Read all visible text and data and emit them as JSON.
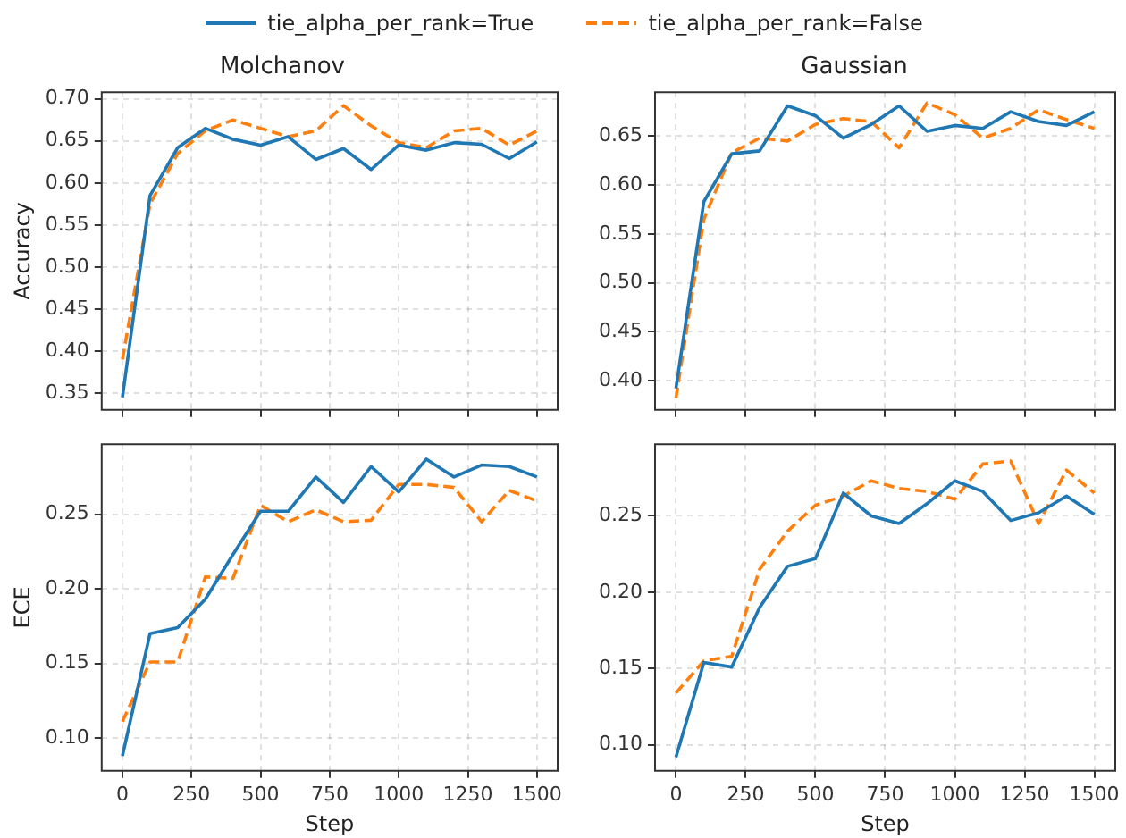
{
  "chart_data": [
    {
      "type": "line",
      "title": "Molchanov",
      "ylabel": "Accuracy",
      "x": [
        0,
        100,
        200,
        300,
        400,
        500,
        600,
        700,
        800,
        900,
        1000,
        1100,
        1200,
        1300,
        1400,
        1500
      ],
      "xlim": [
        -75,
        1575
      ],
      "xticks": [
        0,
        250,
        500,
        750,
        1000,
        1250,
        1500
      ],
      "ylim": [
        0.33,
        0.708
      ],
      "yticks": [
        {
          "value": 0.35,
          "label": "0.35"
        },
        {
          "value": 0.4,
          "label": "0.40"
        },
        {
          "value": 0.45,
          "label": "0.45"
        },
        {
          "value": 0.5,
          "label": "0.50"
        },
        {
          "value": 0.55,
          "label": "0.55"
        },
        {
          "value": 0.6,
          "label": "0.60"
        },
        {
          "value": 0.65,
          "label": "0.65"
        },
        {
          "value": 0.7,
          "label": "0.70"
        }
      ],
      "tick_labels": "y",
      "grid": true,
      "legend": "top",
      "series": [
        {
          "name": "tie_alpha_per_rank=True",
          "color": "#1f77b4",
          "line_style": "solid",
          "values": [
            0.345,
            0.585,
            0.642,
            0.665,
            0.652,
            0.645,
            0.655,
            0.628,
            0.641,
            0.616,
            0.645,
            0.639,
            0.648,
            0.646,
            0.629,
            0.649
          ]
        },
        {
          "name": "tie_alpha_per_rank=False",
          "color": "#ff7f0e",
          "line_style": "dashed",
          "values": [
            0.39,
            0.575,
            0.635,
            0.662,
            0.675,
            0.665,
            0.655,
            0.662,
            0.692,
            0.668,
            0.648,
            0.642,
            0.662,
            0.665,
            0.645,
            0.662
          ]
        }
      ]
    },
    {
      "type": "line",
      "title": "Gaussian",
      "x": [
        0,
        100,
        200,
        300,
        400,
        500,
        600,
        700,
        800,
        900,
        1000,
        1100,
        1200,
        1300,
        1400,
        1500
      ],
      "xlim": [
        -75,
        1575
      ],
      "xticks": [
        0,
        250,
        500,
        750,
        1000,
        1250,
        1500
      ],
      "ylim": [
        0.37,
        0.695
      ],
      "yticks": [
        {
          "value": 0.4,
          "label": "0.40"
        },
        {
          "value": 0.45,
          "label": "0.45"
        },
        {
          "value": 0.5,
          "label": "0.50"
        },
        {
          "value": 0.55,
          "label": "0.55"
        },
        {
          "value": 0.6,
          "label": "0.60"
        },
        {
          "value": 0.65,
          "label": "0.65"
        }
      ],
      "tick_labels": "y",
      "grid": true,
      "series": [
        {
          "color": "#1f77b4",
          "line_style": "solid",
          "values": [
            0.392,
            0.583,
            0.632,
            0.635,
            0.681,
            0.671,
            0.648,
            0.662,
            0.681,
            0.655,
            0.661,
            0.658,
            0.675,
            0.665,
            0.661,
            0.675
          ]
        },
        {
          "color": "#ff7f0e",
          "line_style": "dashed",
          "values": [
            0.382,
            0.565,
            0.633,
            0.648,
            0.645,
            0.662,
            0.668,
            0.665,
            0.638,
            0.684,
            0.672,
            0.648,
            0.658,
            0.677,
            0.667,
            0.658
          ]
        }
      ]
    },
    {
      "type": "line",
      "xlabel": "Step",
      "ylabel": "ECE",
      "x": [
        0,
        100,
        200,
        300,
        400,
        500,
        600,
        700,
        800,
        900,
        1000,
        1100,
        1200,
        1300,
        1400,
        1500
      ],
      "xlim": [
        -75,
        1575
      ],
      "xticks": [
        0,
        250,
        500,
        750,
        1000,
        1250,
        1500
      ],
      "ylim": [
        0.078,
        0.297
      ],
      "yticks": [
        {
          "value": 0.1,
          "label": "0.10"
        },
        {
          "value": 0.15,
          "label": "0.15"
        },
        {
          "value": 0.2,
          "label": "0.20"
        },
        {
          "value": 0.25,
          "label": "0.25"
        }
      ],
      "grid": true,
      "series": [
        {
          "color": "#1f77b4",
          "line_style": "solid",
          "values": [
            0.088,
            0.17,
            0.174,
            0.193,
            0.223,
            0.252,
            0.252,
            0.275,
            0.258,
            0.282,
            0.265,
            0.287,
            0.275,
            0.283,
            0.282,
            0.275
          ]
        },
        {
          "color": "#ff7f0e",
          "line_style": "dashed",
          "values": [
            0.111,
            0.151,
            0.151,
            0.208,
            0.207,
            0.256,
            0.245,
            0.253,
            0.245,
            0.246,
            0.27,
            0.27,
            0.268,
            0.245,
            0.266,
            0.259
          ]
        }
      ]
    },
    {
      "type": "line",
      "xlabel": "Step",
      "x": [
        0,
        100,
        200,
        300,
        400,
        500,
        600,
        700,
        800,
        900,
        1000,
        1100,
        1200,
        1300,
        1400,
        1500
      ],
      "xlim": [
        -75,
        1575
      ],
      "xticks": [
        0,
        250,
        500,
        750,
        1000,
        1250,
        1500
      ],
      "ylim": [
        0.083,
        0.297
      ],
      "yticks": [
        {
          "value": 0.1,
          "label": "0.10"
        },
        {
          "value": 0.15,
          "label": "0.15"
        },
        {
          "value": 0.2,
          "label": "0.20"
        },
        {
          "value": 0.25,
          "label": "0.25"
        }
      ],
      "grid": true,
      "series": [
        {
          "color": "#1f77b4",
          "line_style": "solid",
          "values": [
            0.092,
            0.154,
            0.151,
            0.19,
            0.217,
            0.222,
            0.265,
            0.25,
            0.245,
            0.258,
            0.273,
            0.266,
            0.247,
            0.252,
            0.263,
            0.251
          ]
        },
        {
          "color": "#ff7f0e",
          "line_style": "dashed",
          "values": [
            0.134,
            0.155,
            0.158,
            0.215,
            0.24,
            0.257,
            0.263,
            0.273,
            0.268,
            0.266,
            0.261,
            0.284,
            0.286,
            0.245,
            0.28,
            0.265
          ]
        }
      ]
    }
  ]
}
